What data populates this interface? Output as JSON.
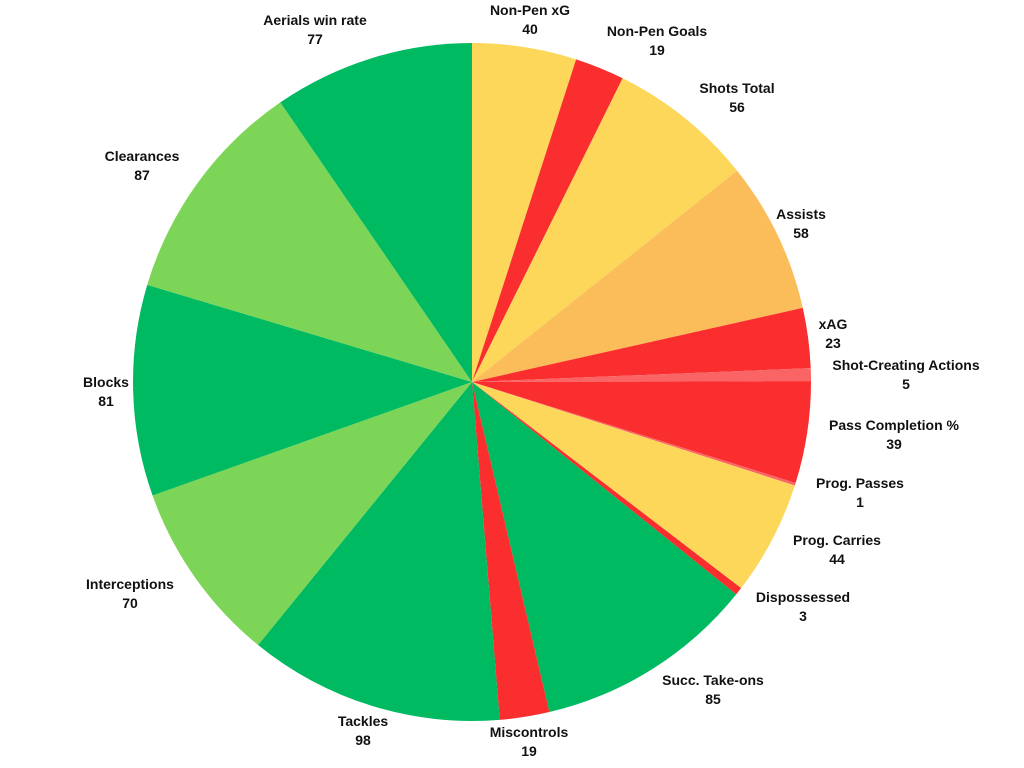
{
  "page": {
    "background": "#ffffff",
    "text_color": "#111111"
  },
  "palette": {
    "green_dark": "#00BA62",
    "green_light": "#7CD556",
    "yellow": "#FDD75A",
    "orange": "#FBBC5A",
    "red": "#FA2E2E",
    "red_light": "#FA6464"
  },
  "chart_data": {
    "type": "pie",
    "title": "",
    "legend": "none",
    "start": "12 o'clock",
    "direction": "clockwise",
    "angle_proportional_to": "value",
    "slices": [
      {
        "label": "Non-Pen xG",
        "value": 40,
        "color": "#FDD75A"
      },
      {
        "label": "Non-Pen Goals",
        "value": 19,
        "color": "#FA2E2E"
      },
      {
        "label": "Shots Total",
        "value": 56,
        "color": "#FDD75A"
      },
      {
        "label": "Assists",
        "value": 58,
        "color": "#FBBC5A"
      },
      {
        "label": "xAG",
        "value": 23,
        "color": "#FA2E2E"
      },
      {
        "label": "Shot-Creating Actions",
        "value": 5,
        "color": "#FA6464"
      },
      {
        "label": "Pass Completion %",
        "value": 39,
        "color": "#FA2E2E"
      },
      {
        "label": "Prog. Passes",
        "value": 1,
        "color": "#FA6464"
      },
      {
        "label": "Prog. Carries",
        "value": 44,
        "color": "#FDD75A"
      },
      {
        "label": "Dispossessed",
        "value": 3,
        "color": "#FA2E2E"
      },
      {
        "label": "Succ. Take-ons",
        "value": 85,
        "color": "#00BA62"
      },
      {
        "label": "Miscontrols",
        "value": 19,
        "color": "#FA2E2E"
      },
      {
        "label": "Tackles",
        "value": 98,
        "color": "#00BA62"
      },
      {
        "label": "Interceptions",
        "value": 70,
        "color": "#7CD556"
      },
      {
        "label": "Blocks",
        "value": 81,
        "color": "#00BA62"
      },
      {
        "label": "Clearances",
        "value": 87,
        "color": "#7CD556"
      },
      {
        "label": "Aerials win rate",
        "value": 77,
        "color": "#00BA62"
      }
    ]
  }
}
